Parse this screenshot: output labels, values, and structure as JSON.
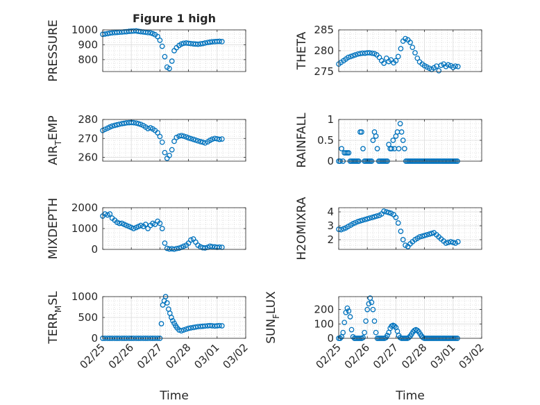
{
  "chart_data": [
    {
      "type": "scatter",
      "title": "Figure 1 high",
      "ylabel": "PRESSURE",
      "ylabel_sub": "",
      "ylabel_rest": "",
      "ylim": [
        720,
        1000
      ],
      "yticks": [
        800,
        900,
        1000
      ],
      "series_color": "#0072BD",
      "x_points": [
        0.0,
        0.08,
        0.17,
        0.25,
        0.33,
        0.42,
        0.5,
        0.58,
        0.67,
        0.75,
        0.83,
        0.92,
        1.0,
        1.08,
        1.17,
        1.25,
        1.33,
        1.42,
        1.5,
        1.58,
        1.67,
        1.75,
        1.83,
        1.92,
        2.0,
        2.08,
        2.17,
        2.25,
        2.33,
        2.42,
        2.5,
        2.58,
        2.67,
        2.75,
        2.83,
        2.92,
        3.0,
        3.08,
        3.17,
        3.25,
        3.33,
        3.42,
        3.5,
        3.58,
        3.67,
        3.75,
        3.83,
        3.92,
        4.0,
        4.08,
        4.17
      ],
      "y_points": [
        970,
        972,
        975,
        978,
        980,
        982,
        983,
        984,
        985,
        987,
        988,
        990,
        991,
        992,
        993,
        990,
        988,
        986,
        984,
        982,
        980,
        975,
        968,
        955,
        930,
        890,
        820,
        750,
        740,
        790,
        860,
        880,
        895,
        905,
        910,
        912,
        910,
        908,
        906,
        905,
        904,
        906,
        908,
        912,
        915,
        918,
        920,
        921,
        922,
        923,
        921
      ]
    },
    {
      "type": "scatter",
      "title": "",
      "ylabel": "THETA",
      "ylabel_sub": "",
      "ylabel_rest": "",
      "ylim": [
        275,
        285
      ],
      "yticks": [
        275,
        280,
        285
      ],
      "series_color": "#0072BD",
      "x_points": [
        0.0,
        0.08,
        0.17,
        0.25,
        0.33,
        0.42,
        0.5,
        0.58,
        0.67,
        0.75,
        0.83,
        0.92,
        1.0,
        1.08,
        1.17,
        1.25,
        1.33,
        1.42,
        1.5,
        1.58,
        1.67,
        1.75,
        1.83,
        1.92,
        2.0,
        2.08,
        2.17,
        2.25,
        2.33,
        2.42,
        2.5,
        2.58,
        2.67,
        2.75,
        2.83,
        2.92,
        3.0,
        3.08,
        3.17,
        3.25,
        3.33,
        3.42,
        3.5,
        3.58,
        3.67,
        3.75,
        3.83,
        3.92,
        4.0,
        4.08,
        4.17
      ],
      "y_points": [
        276.8,
        277.2,
        277.6,
        278.0,
        278.4,
        278.6,
        278.8,
        279.0,
        279.2,
        279.3,
        279.4,
        279.4,
        279.5,
        279.5,
        279.4,
        279.3,
        279.0,
        278.4,
        277.6,
        277.0,
        278.2,
        277.4,
        277.8,
        277.1,
        277.6,
        278.6,
        280.5,
        282.3,
        282.9,
        282.6,
        282.0,
        280.8,
        279.5,
        278.2,
        277.3,
        276.8,
        276.4,
        276.1,
        275.8,
        275.5,
        275.9,
        276.3,
        275.2,
        276.5,
        276.8,
        276.2,
        276.6,
        276.4,
        276.0,
        276.3,
        276.2
      ]
    },
    {
      "type": "scatter",
      "title": "",
      "ylabel": "AIR",
      "ylabel_sub": "T",
      "ylabel_rest": "EMP",
      "ylim": [
        258,
        280
      ],
      "yticks": [
        260,
        270,
        280
      ],
      "series_color": "#0072BD",
      "x_points": [
        0.0,
        0.08,
        0.17,
        0.25,
        0.33,
        0.42,
        0.5,
        0.58,
        0.67,
        0.75,
        0.83,
        0.92,
        1.0,
        1.08,
        1.17,
        1.25,
        1.33,
        1.42,
        1.5,
        1.58,
        1.67,
        1.75,
        1.83,
        1.92,
        2.0,
        2.08,
        2.17,
        2.25,
        2.33,
        2.42,
        2.5,
        2.58,
        2.67,
        2.75,
        2.83,
        2.92,
        3.0,
        3.08,
        3.17,
        3.25,
        3.33,
        3.42,
        3.5,
        3.58,
        3.67,
        3.75,
        3.83,
        3.92,
        4.0,
        4.08,
        4.17
      ],
      "y_points": [
        274.2,
        274.8,
        275.4,
        276.0,
        276.5,
        276.9,
        277.2,
        277.5,
        277.8,
        278.0,
        278.2,
        278.3,
        278.4,
        278.3,
        278.1,
        277.8,
        277.4,
        276.8,
        276.0,
        275.2,
        275.6,
        275.0,
        274.2,
        273.0,
        271.0,
        268.0,
        262.5,
        259.5,
        261.0,
        264.0,
        268.5,
        270.5,
        271.2,
        271.5,
        271.2,
        270.8,
        270.3,
        269.9,
        269.5,
        269.1,
        268.7,
        268.3,
        268.0,
        267.6,
        268.2,
        269.0,
        269.6,
        270.0,
        269.8,
        269.5,
        269.7
      ]
    },
    {
      "type": "scatter",
      "title": "",
      "ylabel": "RAINFALL",
      "ylabel_sub": "",
      "ylabel_rest": "",
      "ylim": [
        0,
        1
      ],
      "yticks": [
        0,
        0.5,
        1
      ],
      "series_color": "#0072BD",
      "x_points": [
        0.0,
        0.05,
        0.1,
        0.15,
        0.2,
        0.25,
        0.3,
        0.35,
        0.4,
        0.45,
        0.5,
        0.55,
        0.6,
        0.65,
        0.7,
        0.75,
        0.8,
        0.85,
        0.9,
        0.95,
        1.0,
        1.05,
        1.1,
        1.15,
        1.2,
        1.25,
        1.3,
        1.35,
        1.4,
        1.45,
        1.5,
        1.55,
        1.6,
        1.65,
        1.7,
        1.75,
        1.8,
        1.85,
        1.9,
        1.95,
        2.0,
        2.05,
        2.1,
        2.15,
        2.2,
        2.25,
        2.3,
        2.35,
        2.4,
        2.45,
        2.5,
        2.55,
        2.6,
        2.65,
        2.7,
        2.75,
        2.8,
        2.85,
        2.9,
        2.95,
        3.0,
        3.05,
        3.1,
        3.15,
        3.2,
        3.25,
        3.3,
        3.35,
        3.4,
        3.45,
        3.5,
        3.55,
        3.6,
        3.65,
        3.7,
        3.75,
        3.8,
        3.85,
        3.9,
        3.95,
        4.0,
        4.05,
        4.1,
        4.15
      ],
      "y_points": [
        0,
        0,
        0.3,
        0,
        0.2,
        0.2,
        0.2,
        0.2,
        0,
        0,
        0,
        0,
        0,
        0,
        0,
        0.7,
        0.7,
        0.3,
        0,
        0,
        0,
        0,
        0,
        0,
        0.5,
        0.7,
        0.6,
        0.3,
        0,
        0,
        0,
        0,
        0,
        0,
        0,
        0.4,
        0.3,
        0.3,
        0.5,
        0.3,
        0.6,
        0.7,
        0.3,
        0.9,
        0.7,
        0.5,
        0.3,
        0,
        0,
        0,
        0,
        0,
        0,
        0,
        0,
        0,
        0,
        0,
        0,
        0,
        0,
        0,
        0,
        0,
        0,
        0,
        0,
        0,
        0,
        0,
        0,
        0,
        0,
        0,
        0,
        0,
        0,
        0,
        0,
        0,
        0,
        0,
        0,
        0
      ]
    },
    {
      "type": "scatter",
      "title": "",
      "ylabel": "MIXDEPTH",
      "ylabel_sub": "",
      "ylabel_rest": "",
      "ylim": [
        0,
        2000
      ],
      "yticks": [
        0,
        1000,
        2000
      ],
      "series_color": "#0072BD",
      "x_points": [
        0.0,
        0.08,
        0.17,
        0.25,
        0.33,
        0.42,
        0.5,
        0.58,
        0.67,
        0.75,
        0.83,
        0.92,
        1.0,
        1.08,
        1.17,
        1.25,
        1.33,
        1.42,
        1.5,
        1.58,
        1.67,
        1.75,
        1.83,
        1.92,
        2.0,
        2.08,
        2.17,
        2.25,
        2.33,
        2.42,
        2.5,
        2.58,
        2.67,
        2.75,
        2.83,
        2.92,
        3.0,
        3.08,
        3.17,
        3.25,
        3.33,
        3.42,
        3.5,
        3.58,
        3.67,
        3.75,
        3.83,
        3.92,
        4.0,
        4.08,
        4.17
      ],
      "y_points": [
        1600,
        1700,
        1650,
        1700,
        1500,
        1400,
        1300,
        1250,
        1250,
        1200,
        1150,
        1100,
        1050,
        1000,
        1050,
        1100,
        1150,
        1100,
        1200,
        1000,
        1150,
        1250,
        1200,
        1350,
        1250,
        1000,
        300,
        50,
        20,
        30,
        10,
        40,
        60,
        100,
        150,
        200,
        300,
        450,
        500,
        350,
        200,
        120,
        80,
        70,
        100,
        150,
        130,
        120,
        100,
        110,
        100
      ]
    },
    {
      "type": "scatter",
      "title": "",
      "ylabel": "H2OMIXRA",
      "ylabel_sub": "",
      "ylabel_rest": "",
      "ylim": [
        1.3,
        4.3
      ],
      "yticks": [
        2,
        3,
        4
      ],
      "series_color": "#0072BD",
      "x_points": [
        0.0,
        0.08,
        0.17,
        0.25,
        0.33,
        0.42,
        0.5,
        0.58,
        0.67,
        0.75,
        0.83,
        0.92,
        1.0,
        1.08,
        1.17,
        1.25,
        1.33,
        1.42,
        1.5,
        1.58,
        1.67,
        1.75,
        1.83,
        1.92,
        2.0,
        2.08,
        2.17,
        2.25,
        2.33,
        2.42,
        2.5,
        2.58,
        2.67,
        2.75,
        2.83,
        2.92,
        3.0,
        3.08,
        3.17,
        3.25,
        3.33,
        3.42,
        3.5,
        3.58,
        3.67,
        3.75,
        3.83,
        3.92,
        4.0,
        4.08,
        4.17
      ],
      "y_points": [
        2.75,
        2.72,
        2.78,
        2.85,
        2.95,
        3.05,
        3.15,
        3.22,
        3.3,
        3.35,
        3.4,
        3.45,
        3.5,
        3.55,
        3.6,
        3.65,
        3.7,
        3.75,
        3.85,
        4.05,
        4.0,
        3.95,
        3.9,
        3.8,
        3.6,
        3.2,
        2.6,
        2.0,
        1.6,
        1.5,
        1.7,
        1.85,
        2.0,
        2.1,
        2.2,
        2.25,
        2.3,
        2.35,
        2.4,
        2.45,
        2.5,
        2.35,
        2.2,
        2.05,
        1.9,
        1.75,
        1.8,
        1.85,
        1.8,
        1.75,
        1.85
      ]
    },
    {
      "type": "scatter",
      "title": "",
      "ylabel": "TERR",
      "ylabel_sub": "M",
      "ylabel_rest": "SL",
      "ylim": [
        0,
        1000
      ],
      "yticks": [
        0,
        500,
        1000
      ],
      "series_color": "#0072BD",
      "x_points": [
        0.0,
        0.08,
        0.17,
        0.25,
        0.33,
        0.42,
        0.5,
        0.58,
        0.67,
        0.75,
        0.83,
        0.92,
        1.0,
        1.08,
        1.17,
        1.25,
        1.33,
        1.42,
        1.5,
        1.58,
        1.67,
        1.75,
        1.83,
        1.92,
        2.0,
        2.05,
        2.1,
        2.15,
        2.2,
        2.25,
        2.3,
        2.35,
        2.4,
        2.45,
        2.5,
        2.55,
        2.6,
        2.67,
        2.75,
        2.83,
        2.92,
        3.0,
        3.08,
        3.17,
        3.25,
        3.33,
        3.42,
        3.5,
        3.58,
        3.67,
        3.75,
        3.83,
        3.92,
        4.0,
        4.08,
        4.17
      ],
      "y_points": [
        0,
        0,
        0,
        0,
        0,
        0,
        0,
        0,
        0,
        0,
        0,
        0,
        0,
        0,
        0,
        0,
        0,
        0,
        0,
        0,
        0,
        0,
        0,
        0,
        0,
        350,
        800,
        900,
        1000,
        850,
        700,
        600,
        500,
        420,
        360,
        300,
        250,
        200,
        180,
        200,
        220,
        240,
        250,
        260,
        270,
        280,
        285,
        290,
        295,
        300,
        305,
        300,
        295,
        300,
        305,
        300
      ]
    },
    {
      "type": "scatter",
      "title": "",
      "ylabel": "SUN",
      "ylabel_sub": "F",
      "ylabel_rest": "LUX",
      "ylim": [
        0,
        290
      ],
      "yticks": [
        0,
        100,
        200
      ],
      "series_color": "#0072BD",
      "x_points": [
        0.0,
        0.05,
        0.1,
        0.15,
        0.2,
        0.25,
        0.3,
        0.35,
        0.4,
        0.45,
        0.5,
        0.55,
        0.6,
        0.65,
        0.7,
        0.75,
        0.8,
        0.85,
        0.9,
        0.95,
        1.0,
        1.05,
        1.1,
        1.15,
        1.2,
        1.25,
        1.3,
        1.35,
        1.4,
        1.45,
        1.5,
        1.55,
        1.6,
        1.65,
        1.7,
        1.75,
        1.8,
        1.85,
        1.9,
        1.95,
        2.0,
        2.05,
        2.1,
        2.15,
        2.2,
        2.25,
        2.3,
        2.35,
        2.4,
        2.45,
        2.5,
        2.55,
        2.6,
        2.65,
        2.7,
        2.75,
        2.8,
        2.85,
        2.9,
        2.95,
        3.0,
        3.05,
        3.1,
        3.15,
        3.2,
        3.25,
        3.3,
        3.35,
        3.4,
        3.45,
        3.5,
        3.55,
        3.6,
        3.65,
        3.7,
        3.75,
        3.8,
        3.85,
        3.9,
        3.95,
        4.0,
        4.05,
        4.1,
        4.15
      ],
      "y_points": [
        0,
        0,
        10,
        40,
        110,
        180,
        210,
        190,
        150,
        60,
        10,
        0,
        0,
        0,
        0,
        0,
        0,
        5,
        40,
        120,
        200,
        240,
        280,
        250,
        200,
        120,
        40,
        0,
        0,
        0,
        0,
        0,
        0,
        5,
        20,
        40,
        70,
        85,
        90,
        85,
        75,
        50,
        20,
        5,
        0,
        0,
        0,
        0,
        0,
        5,
        15,
        30,
        45,
        55,
        60,
        55,
        45,
        30,
        15,
        5,
        0,
        0,
        0,
        0,
        0,
        0,
        0,
        0,
        0,
        0,
        0,
        0,
        0,
        0,
        0,
        0,
        0,
        0,
        0,
        0,
        0,
        0,
        0,
        0
      ]
    }
  ],
  "shared_x": {
    "xlabel": "Time",
    "xlim": [
      0,
      5
    ],
    "tick_values": [
      0,
      1,
      2,
      3,
      4,
      5
    ],
    "tick_labels": [
      "02/25",
      "02/26",
      "02/27",
      "02/28",
      "03/01",
      "03/02"
    ]
  }
}
